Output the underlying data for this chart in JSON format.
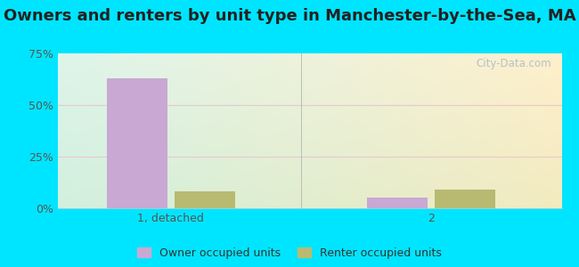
{
  "title": "Owners and renters by unit type in Manchester-by-the-Sea, MA",
  "categories": [
    "1, detached",
    "2"
  ],
  "owner_values": [
    63,
    5
  ],
  "renter_values": [
    8,
    9
  ],
  "owner_color": "#c9a8d4",
  "renter_color": "#b8ba72",
  "bar_width": 0.35,
  "ylim": [
    0,
    75
  ],
  "yticks": [
    0,
    25,
    50,
    75
  ],
  "yticklabels": [
    "0%",
    "25%",
    "50%",
    "75%"
  ],
  "legend_owner": "Owner occupied units",
  "legend_renter": "Renter occupied units",
  "background_outer": "#00e5ff",
  "watermark": "City-Data.com",
  "title_fontsize": 13,
  "x_positions": [
    0.75,
    2.25
  ],
  "xlim": [
    0.1,
    3.0
  ]
}
